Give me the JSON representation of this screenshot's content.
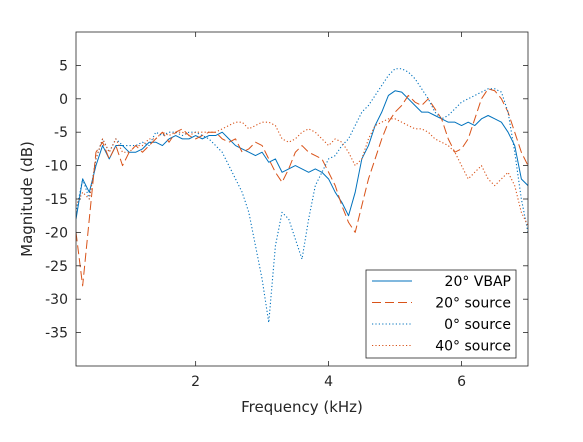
{
  "chart_data": {
    "type": "line",
    "title": "",
    "xlabel": "Frequency (kHz)",
    "ylabel": "Magnitude (dB)",
    "xlim": [
      0.2,
      7.0
    ],
    "ylim": [
      -40,
      10
    ],
    "xticks": [
      2,
      4,
      6
    ],
    "yticks": [
      -35,
      -30,
      -25,
      -20,
      -15,
      -10,
      -5,
      0,
      5
    ],
    "grid": false,
    "legend_position": "bottom-right",
    "series": [
      {
        "name": "20° VBAP",
        "color": "#0072BD",
        "style": "solid",
        "points": [
          [
            0.2,
            -18
          ],
          [
            0.3,
            -12
          ],
          [
            0.4,
            -14
          ],
          [
            0.5,
            -10
          ],
          [
            0.6,
            -7
          ],
          [
            0.7,
            -9
          ],
          [
            0.8,
            -7
          ],
          [
            0.9,
            -7
          ],
          [
            1.0,
            -8
          ],
          [
            1.1,
            -8
          ],
          [
            1.2,
            -7.5
          ],
          [
            1.3,
            -6.5
          ],
          [
            1.4,
            -6.5
          ],
          [
            1.5,
            -7
          ],
          [
            1.6,
            -6
          ],
          [
            1.7,
            -5.5
          ],
          [
            1.8,
            -6
          ],
          [
            1.9,
            -6
          ],
          [
            2.0,
            -5.5
          ],
          [
            2.1,
            -6
          ],
          [
            2.2,
            -5.5
          ],
          [
            2.3,
            -5.5
          ],
          [
            2.4,
            -5
          ],
          [
            2.5,
            -6
          ],
          [
            2.6,
            -7
          ],
          [
            2.7,
            -7.5
          ],
          [
            2.8,
            -8
          ],
          [
            2.9,
            -8.5
          ],
          [
            3.0,
            -8
          ],
          [
            3.1,
            -9.5
          ],
          [
            3.2,
            -9
          ],
          [
            3.3,
            -11
          ],
          [
            3.4,
            -10.5
          ],
          [
            3.5,
            -10
          ],
          [
            3.6,
            -10.5
          ],
          [
            3.7,
            -11
          ],
          [
            3.8,
            -10.5
          ],
          [
            3.9,
            -11
          ],
          [
            4.0,
            -12
          ],
          [
            4.1,
            -14
          ],
          [
            4.2,
            -15.5
          ],
          [
            4.3,
            -17.5
          ],
          [
            4.4,
            -14
          ],
          [
            4.5,
            -9
          ],
          [
            4.6,
            -7
          ],
          [
            4.7,
            -4
          ],
          [
            4.8,
            -2
          ],
          [
            4.9,
            0.5
          ],
          [
            5.0,
            1.2
          ],
          [
            5.1,
            1.0
          ],
          [
            5.2,
            0
          ],
          [
            5.3,
            -1
          ],
          [
            5.4,
            -2
          ],
          [
            5.5,
            -2
          ],
          [
            5.6,
            -2.5
          ],
          [
            5.7,
            -3
          ],
          [
            5.8,
            -3.5
          ],
          [
            5.9,
            -3.5
          ],
          [
            6.0,
            -4
          ],
          [
            6.1,
            -3.5
          ],
          [
            6.2,
            -4
          ],
          [
            6.3,
            -3
          ],
          [
            6.4,
            -2.5
          ],
          [
            6.5,
            -3
          ],
          [
            6.6,
            -3.5
          ],
          [
            6.7,
            -5
          ],
          [
            6.8,
            -7
          ],
          [
            6.9,
            -12
          ],
          [
            7.0,
            -13
          ]
        ]
      },
      {
        "name": "20° source",
        "color": "#D95319",
        "style": "dashed",
        "points": [
          [
            0.2,
            -20
          ],
          [
            0.3,
            -28
          ],
          [
            0.4,
            -18
          ],
          [
            0.5,
            -8
          ],
          [
            0.6,
            -6.5
          ],
          [
            0.7,
            -9
          ],
          [
            0.8,
            -7
          ],
          [
            0.9,
            -10
          ],
          [
            1.0,
            -8
          ],
          [
            1.1,
            -7
          ],
          [
            1.2,
            -8
          ],
          [
            1.3,
            -7
          ],
          [
            1.4,
            -6
          ],
          [
            1.5,
            -5
          ],
          [
            1.6,
            -6.5
          ],
          [
            1.7,
            -5
          ],
          [
            1.8,
            -4.5
          ],
          [
            1.9,
            -5.5
          ],
          [
            2.0,
            -6
          ],
          [
            2.1,
            -5.5
          ],
          [
            2.2,
            -5
          ],
          [
            2.3,
            -5
          ],
          [
            2.4,
            -6
          ],
          [
            2.5,
            -6.5
          ],
          [
            2.6,
            -6
          ],
          [
            2.7,
            -8
          ],
          [
            2.8,
            -7.5
          ],
          [
            2.9,
            -6.5
          ],
          [
            3.0,
            -7
          ],
          [
            3.1,
            -9
          ],
          [
            3.2,
            -11
          ],
          [
            3.3,
            -12.5
          ],
          [
            3.4,
            -10.5
          ],
          [
            3.5,
            -8
          ],
          [
            3.6,
            -7
          ],
          [
            3.7,
            -8
          ],
          [
            3.8,
            -8.5
          ],
          [
            3.9,
            -9
          ],
          [
            4.0,
            -11
          ],
          [
            4.1,
            -13
          ],
          [
            4.2,
            -16
          ],
          [
            4.3,
            -18.5
          ],
          [
            4.4,
            -20
          ],
          [
            4.5,
            -16
          ],
          [
            4.6,
            -12
          ],
          [
            4.7,
            -9
          ],
          [
            4.8,
            -6
          ],
          [
            4.9,
            -3.5
          ],
          [
            5.0,
            -2
          ],
          [
            5.1,
            -1
          ],
          [
            5.2,
            0.5
          ],
          [
            5.3,
            -0.5
          ],
          [
            5.4,
            -1
          ],
          [
            5.5,
            0
          ],
          [
            5.6,
            -1.5
          ],
          [
            5.7,
            -3
          ],
          [
            5.8,
            -6
          ],
          [
            5.9,
            -8
          ],
          [
            6.0,
            -7.5
          ],
          [
            6.1,
            -6
          ],
          [
            6.2,
            -3
          ],
          [
            6.3,
            0
          ],
          [
            6.4,
            1.5
          ],
          [
            6.5,
            1.2
          ],
          [
            6.6,
            0
          ],
          [
            6.7,
            -2
          ],
          [
            6.8,
            -5
          ],
          [
            6.9,
            -8
          ],
          [
            7.0,
            -10
          ]
        ]
      },
      {
        "name": "0° source",
        "color": "#0072BD",
        "style": "dotted",
        "points": [
          [
            0.2,
            -17
          ],
          [
            0.3,
            -12
          ],
          [
            0.4,
            -15
          ],
          [
            0.5,
            -9
          ],
          [
            0.6,
            -6
          ],
          [
            0.7,
            -8
          ],
          [
            0.8,
            -6
          ],
          [
            0.9,
            -7
          ],
          [
            1.0,
            -7
          ],
          [
            1.1,
            -7
          ],
          [
            1.2,
            -6.5
          ],
          [
            1.3,
            -7
          ],
          [
            1.4,
            -5
          ],
          [
            1.5,
            -5.5
          ],
          [
            1.6,
            -5
          ],
          [
            1.7,
            -5
          ],
          [
            1.8,
            -5.5
          ],
          [
            1.9,
            -5
          ],
          [
            2.0,
            -5
          ],
          [
            2.1,
            -5.5
          ],
          [
            2.2,
            -6
          ],
          [
            2.3,
            -7
          ],
          [
            2.4,
            -8
          ],
          [
            2.5,
            -10
          ],
          [
            2.6,
            -12
          ],
          [
            2.7,
            -14
          ],
          [
            2.8,
            -17
          ],
          [
            2.9,
            -22
          ],
          [
            3.0,
            -27
          ],
          [
            3.1,
            -33.5
          ],
          [
            3.2,
            -22
          ],
          [
            3.3,
            -17
          ],
          [
            3.4,
            -18
          ],
          [
            3.5,
            -21
          ],
          [
            3.6,
            -24
          ],
          [
            3.7,
            -18
          ],
          [
            3.8,
            -13
          ],
          [
            3.9,
            -11
          ],
          [
            4.0,
            -9
          ],
          [
            4.1,
            -8.5
          ],
          [
            4.2,
            -7
          ],
          [
            4.3,
            -6
          ],
          [
            4.4,
            -4
          ],
          [
            4.5,
            -2
          ],
          [
            4.6,
            -1
          ],
          [
            4.7,
            0.5
          ],
          [
            4.8,
            2
          ],
          [
            4.9,
            3.5
          ],
          [
            5.0,
            4.5
          ],
          [
            5.1,
            4.5
          ],
          [
            5.2,
            4
          ],
          [
            5.3,
            3
          ],
          [
            5.4,
            1.5
          ],
          [
            5.5,
            0
          ],
          [
            5.6,
            -2
          ],
          [
            5.7,
            -3
          ],
          [
            5.8,
            -2.5
          ],
          [
            5.9,
            -1.5
          ],
          [
            6.0,
            -0.5
          ],
          [
            6.1,
            0
          ],
          [
            6.2,
            0.5
          ],
          [
            6.3,
            1
          ],
          [
            6.4,
            1.5
          ],
          [
            6.5,
            1.5
          ],
          [
            6.6,
            1
          ],
          [
            6.7,
            -2
          ],
          [
            6.8,
            -8
          ],
          [
            6.9,
            -15
          ],
          [
            7.0,
            -20
          ]
        ]
      },
      {
        "name": "40° source",
        "color": "#D95319",
        "style": "dotted",
        "points": [
          [
            0.2,
            -16
          ],
          [
            0.3,
            -14
          ],
          [
            0.4,
            -15
          ],
          [
            0.5,
            -9
          ],
          [
            0.6,
            -6
          ],
          [
            0.7,
            -8
          ],
          [
            0.8,
            -6
          ],
          [
            0.9,
            -8
          ],
          [
            1.0,
            -8
          ],
          [
            1.1,
            -7
          ],
          [
            1.2,
            -7
          ],
          [
            1.3,
            -6
          ],
          [
            1.4,
            -6
          ],
          [
            1.5,
            -5
          ],
          [
            1.6,
            -5.5
          ],
          [
            1.7,
            -5
          ],
          [
            1.8,
            -5
          ],
          [
            1.9,
            -5.5
          ],
          [
            2.0,
            -5
          ],
          [
            2.1,
            -5
          ],
          [
            2.2,
            -5
          ],
          [
            2.3,
            -5
          ],
          [
            2.4,
            -4.5
          ],
          [
            2.5,
            -4
          ],
          [
            2.6,
            -3.5
          ],
          [
            2.7,
            -3.5
          ],
          [
            2.8,
            -4.5
          ],
          [
            2.9,
            -4
          ],
          [
            3.0,
            -3.5
          ],
          [
            3.1,
            -3.5
          ],
          [
            3.2,
            -4
          ],
          [
            3.3,
            -6
          ],
          [
            3.4,
            -6.5
          ],
          [
            3.5,
            -6
          ],
          [
            3.6,
            -5
          ],
          [
            3.7,
            -4.5
          ],
          [
            3.8,
            -5
          ],
          [
            3.9,
            -6
          ],
          [
            4.0,
            -7
          ],
          [
            4.1,
            -6
          ],
          [
            4.2,
            -6.5
          ],
          [
            4.3,
            -8
          ],
          [
            4.4,
            -10
          ],
          [
            4.5,
            -9
          ],
          [
            4.6,
            -6
          ],
          [
            4.7,
            -4
          ],
          [
            4.8,
            -3.5
          ],
          [
            4.9,
            -3
          ],
          [
            5.0,
            -3
          ],
          [
            5.1,
            -3.5
          ],
          [
            5.2,
            -4
          ],
          [
            5.3,
            -4.5
          ],
          [
            5.4,
            -4.5
          ],
          [
            5.5,
            -5
          ],
          [
            5.6,
            -6
          ],
          [
            5.7,
            -6.5
          ],
          [
            5.8,
            -7
          ],
          [
            5.9,
            -8
          ],
          [
            6.0,
            -10
          ],
          [
            6.1,
            -12
          ],
          [
            6.2,
            -11
          ],
          [
            6.3,
            -10
          ],
          [
            6.4,
            -12
          ],
          [
            6.5,
            -13
          ],
          [
            6.6,
            -12
          ],
          [
            6.7,
            -11
          ],
          [
            6.8,
            -13
          ],
          [
            6.9,
            -17
          ],
          [
            7.0,
            -19
          ]
        ]
      }
    ]
  }
}
